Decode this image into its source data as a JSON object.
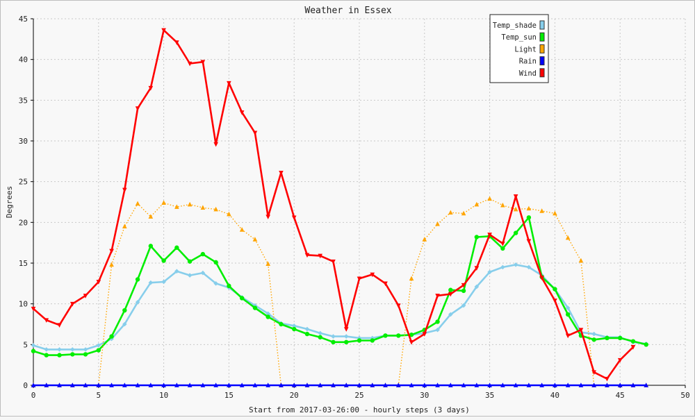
{
  "chart_data": {
    "type": "line",
    "title": "Weather in Essex",
    "xlabel": "Start from 2017-03-26:00 - hourly steps (3 days)",
    "ylabel": "Degrees",
    "xlim": [
      0,
      50
    ],
    "ylim": [
      0,
      45
    ],
    "xticks": [
      0,
      5,
      10,
      15,
      20,
      25,
      30,
      35,
      40,
      45,
      50
    ],
    "yticks": [
      0,
      5,
      10,
      15,
      20,
      25,
      30,
      35,
      40,
      45
    ],
    "grid": true,
    "legend_position": "top-right",
    "series": [
      {
        "name": "Temp_shade",
        "color": "#87ceeb",
        "style": "solid",
        "marker": "diamond",
        "values": [
          4.9,
          4.4,
          4.4,
          4.4,
          4.4,
          4.9,
          5.7,
          7.5,
          10.2,
          12.6,
          12.7,
          14.0,
          13.5,
          13.8,
          12.5,
          12.0,
          10.8,
          9.8,
          8.8,
          7.6,
          7.3,
          6.9,
          6.4,
          6.0,
          6.0,
          5.8,
          5.8,
          6.1,
          6.1,
          6.2,
          6.4,
          6.8,
          8.7,
          9.8,
          12.1,
          13.9,
          14.5,
          14.8,
          14.5,
          13.5,
          11.8,
          9.5,
          6.5,
          6.3,
          5.9,
          5.9,
          5.3,
          5.1
        ]
      },
      {
        "name": "Temp_sun",
        "color": "#00ee00",
        "style": "solid",
        "marker": "circle",
        "values": [
          4.2,
          3.7,
          3.7,
          3.8,
          3.8,
          4.3,
          6.0,
          9.2,
          13.0,
          17.1,
          15.3,
          16.9,
          15.2,
          16.1,
          15.1,
          12.2,
          10.7,
          9.5,
          8.4,
          7.5,
          6.9,
          6.3,
          5.9,
          5.3,
          5.3,
          5.5,
          5.5,
          6.1,
          6.1,
          6.2,
          6.8,
          7.8,
          11.7,
          11.6,
          18.2,
          18.3,
          16.8,
          18.7,
          20.6,
          13.3,
          11.8,
          8.7,
          6.1,
          5.6,
          5.8,
          5.8,
          5.4,
          5.0
        ]
      },
      {
        "name": "Light",
        "color": "#ffa500",
        "style": "dotted",
        "marker": "triangle-up",
        "values": [
          0,
          0,
          0,
          0,
          0,
          0,
          14.8,
          19.5,
          22.3,
          20.7,
          22.4,
          21.9,
          22.2,
          21.8,
          21.6,
          21.0,
          19.1,
          17.9,
          14.9,
          0,
          0,
          0,
          0,
          0,
          0,
          0,
          0,
          0,
          0,
          13.1,
          17.9,
          19.8,
          21.2,
          21.1,
          22.2,
          22.9,
          22.1,
          21.6,
          21.7,
          21.4,
          21.1,
          18.1,
          15.3,
          0,
          0,
          0,
          0,
          0
        ]
      },
      {
        "name": "Rain",
        "color": "#0000ff",
        "style": "solid",
        "marker": "triangle-up",
        "values": [
          0,
          0,
          0,
          0,
          0,
          0,
          0,
          0,
          0,
          0,
          0,
          0,
          0,
          0,
          0,
          0,
          0,
          0,
          0,
          0,
          0,
          0,
          0,
          0,
          0,
          0,
          0,
          0,
          0,
          0,
          0,
          0,
          0,
          0,
          0,
          0,
          0,
          0,
          0,
          0,
          0,
          0,
          0,
          0,
          0,
          0,
          0,
          0
        ]
      },
      {
        "name": "Wind",
        "color": "#ff0000",
        "style": "solid",
        "marker": "triangle-down",
        "values": [
          9.4,
          8.0,
          7.4,
          10.0,
          11.0,
          12.7,
          16.5,
          24.0,
          34.0,
          36.5,
          43.6,
          42.1,
          39.5,
          39.7,
          29.6,
          37.1,
          33.5,
          31.0,
          20.7,
          26.1,
          20.6,
          16.0,
          15.9,
          15.2,
          6.9,
          13.1,
          13.6,
          12.5,
          9.8,
          5.3,
          6.3,
          11.0,
          11.2,
          12.3,
          14.4,
          18.5,
          17.4,
          23.2,
          17.7,
          13.2,
          10.4,
          6.1,
          6.8,
          1.6,
          0.8,
          3.1,
          4.7
        ]
      }
    ]
  }
}
